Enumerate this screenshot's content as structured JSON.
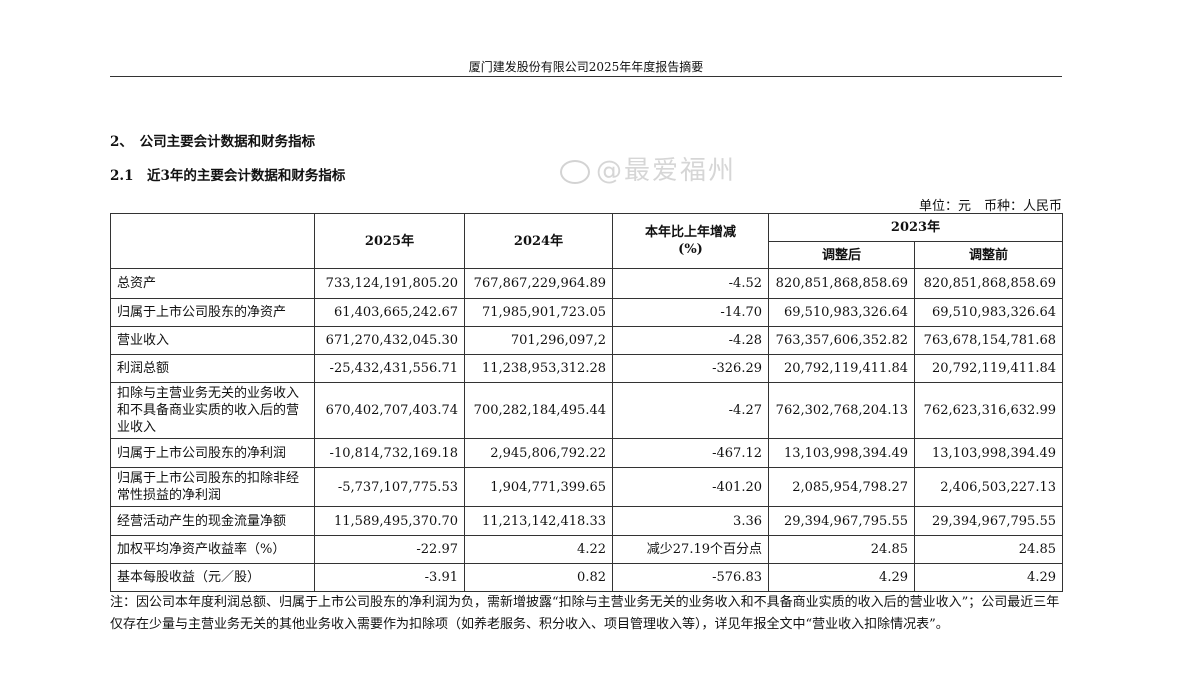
{
  "header": "厦门建发股份有限公司2025年年度报告摘要",
  "section": "2、　公司主要会计数据和财务指标",
  "subsection": "2.1　近3年的主要会计数据和财务指标",
  "unit": "单位：元　币种：人民币",
  "columns": {
    "y2025": "2025年",
    "y2024": "2024年",
    "change": "本年比上年增减(%)",
    "y2023": "2023年",
    "adjusted": "调整后",
    "before": "调整前"
  },
  "rows": [
    {
      "label": "总资产",
      "v2025": "733,124,191,805.20",
      "v2024": "767,867,229,964.89",
      "chg": "-4.52",
      "adj": "820,851,868,858.69",
      "pre": "820,851,868,858.69"
    },
    {
      "label": "归属于上市公司股东的净资产",
      "v2025": "61,403,665,242.67",
      "v2024": "71,985,901,723.05",
      "chg": "-14.70",
      "adj": "69,510,983,326.64",
      "pre": "69,510,983,326.64"
    },
    {
      "label": "营业收入",
      "v2025": "671,270,432,045.30",
      "v2024": "701,296,097,2",
      "chg": "-4.28",
      "adj": "763,357,606,352.82",
      "pre": "763,678,154,781.68"
    },
    {
      "label": "利润总额",
      "v2025": "-25,432,431,556.71",
      "v2024": "11,238,953,312.28",
      "chg": "-326.29",
      "adj": "20,792,119,411.84",
      "pre": "20,792,119,411.84"
    },
    {
      "label": "扣除与主营业务无关的业务收入和不具备商业实质的收入后的营业收入",
      "v2025": "670,402,707,403.74",
      "v2024": "700,282,184,495.44",
      "chg": "-4.27",
      "adj": "762,302,768,204.13",
      "pre": "762,623,316,632.99"
    },
    {
      "label": "归属于上市公司股东的净利润",
      "v2025": "-10,814,732,169.18",
      "v2024": "2,945,806,792.22",
      "chg": "-467.12",
      "adj": "13,103,998,394.49",
      "pre": "13,103,998,394.49"
    },
    {
      "label": "归属于上市公司股东的扣除非经常性损益的净利润",
      "v2025": "-5,737,107,775.53",
      "v2024": "1,904,771,399.65",
      "chg": "-401.20",
      "adj": "2,085,954,798.27",
      "pre": "2,406,503,227.13"
    },
    {
      "label": "经营活动产生的现金流量净额",
      "v2025": "11,589,495,370.70",
      "v2024": "11,213,142,418.33",
      "chg": "3.36",
      "adj": "29,394,967,795.55",
      "pre": "29,394,967,795.55"
    },
    {
      "label": "加权平均净资产收益率（%）",
      "v2025": "-22.97",
      "v2024": "4.22",
      "chg": "减少27.19个百分点",
      "adj": "24.85",
      "pre": "24.85"
    },
    {
      "label": "基本每股收益（元／股）",
      "v2025": "-3.91",
      "v2024": "0.82",
      "chg": "-576.83",
      "adj": "4.29",
      "pre": "4.29"
    }
  ],
  "note": "注：因公司本年度利润总额、归属于上市公司股东的净利润为负，需新增披露“扣除与主营业务无关的业务收入和不具备商业实质的收入后的营业收入”；公司最近三年仅存在少量与主营业务无关的其他业务收入需要作为扣除项（如养老服务、积分收入、项目管理收入等），详见年报全文中“营业收入扣除情况表”。",
  "watermark": "@最爱福州"
}
